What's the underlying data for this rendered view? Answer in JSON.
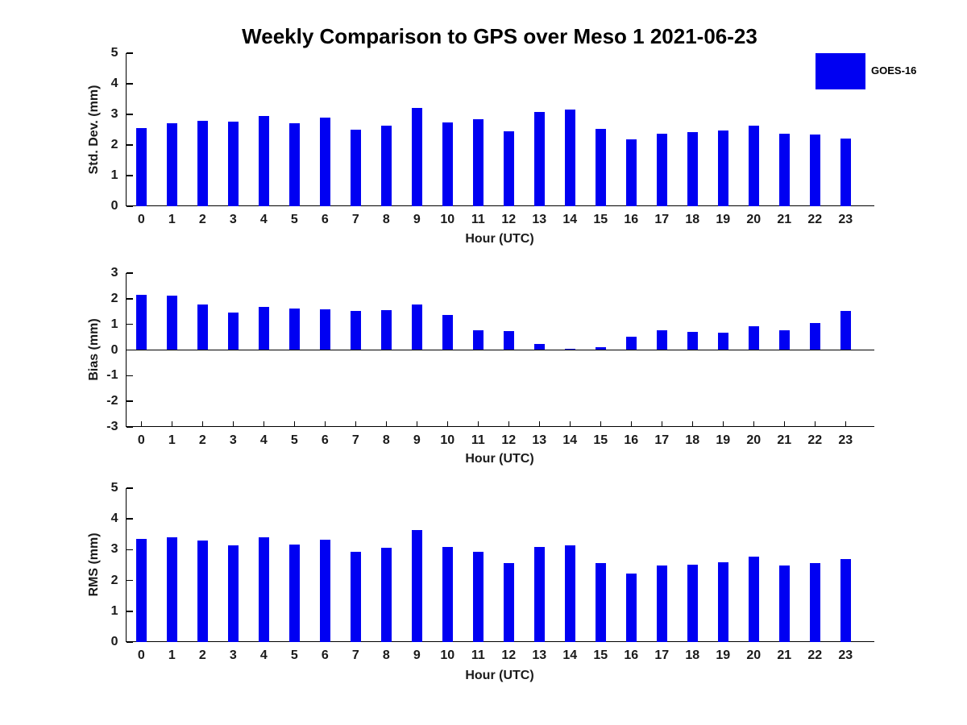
{
  "title": "Weekly Comparison to GPS over Meso 1 2021-06-23",
  "legend": {
    "label": "GOES-16",
    "swatch_color": "#0000F2"
  },
  "colors": {
    "bar": "#0000F2",
    "axis": "#000000",
    "tick_text": "#1a1a1a",
    "background": "#ffffff"
  },
  "chart_data": [
    {
      "type": "bar",
      "title": "Weekly Comparison to GPS over Meso 1 2021-06-23",
      "ylabel": "Std. Dev. (mm)",
      "xlabel": "Hour (UTC)",
      "categories": [
        "0",
        "1",
        "2",
        "3",
        "4",
        "5",
        "6",
        "7",
        "8",
        "9",
        "10",
        "11",
        "12",
        "13",
        "14",
        "15",
        "16",
        "17",
        "18",
        "19",
        "20",
        "21",
        "22",
        "23"
      ],
      "series": [
        {
          "name": "GOES-16",
          "values": [
            2.55,
            2.7,
            2.8,
            2.77,
            2.95,
            2.72,
            2.9,
            2.5,
            2.62,
            3.2,
            2.73,
            2.83,
            2.45,
            3.09,
            3.15,
            2.53,
            2.18,
            2.36,
            2.41,
            2.48,
            2.62,
            2.37,
            2.33,
            2.2
          ]
        }
      ],
      "ylim": [
        0,
        5
      ],
      "yticks": [
        0,
        1,
        2,
        3,
        4,
        5
      ],
      "grid": false,
      "legend_position": "outside-top-right"
    },
    {
      "type": "bar",
      "title": "",
      "ylabel": "Bias (mm)",
      "xlabel": "Hour (UTC)",
      "categories": [
        "0",
        "1",
        "2",
        "3",
        "4",
        "5",
        "6",
        "7",
        "8",
        "9",
        "10",
        "11",
        "12",
        "13",
        "14",
        "15",
        "16",
        "17",
        "18",
        "19",
        "20",
        "21",
        "22",
        "23"
      ],
      "series": [
        {
          "name": "GOES-16",
          "values": [
            2.15,
            2.12,
            1.77,
            1.45,
            1.68,
            1.62,
            1.58,
            1.52,
            1.55,
            1.78,
            1.36,
            0.76,
            0.74,
            0.24,
            0.06,
            0.11,
            0.53,
            0.78,
            0.7,
            0.69,
            0.92,
            0.77,
            1.04,
            1.53
          ]
        }
      ],
      "ylim": [
        -3,
        3
      ],
      "yticks": [
        -3,
        -2,
        -1,
        0,
        1,
        2,
        3
      ],
      "grid": false,
      "legend_position": "none"
    },
    {
      "type": "bar",
      "title": "",
      "ylabel": "RMS (mm)",
      "xlabel": "Hour (UTC)",
      "categories": [
        "0",
        "1",
        "2",
        "3",
        "4",
        "5",
        "6",
        "7",
        "8",
        "9",
        "10",
        "11",
        "12",
        "13",
        "14",
        "15",
        "16",
        "17",
        "18",
        "19",
        "20",
        "21",
        "22",
        "23"
      ],
      "series": [
        {
          "name": "GOES-16",
          "values": [
            3.35,
            3.4,
            3.3,
            3.13,
            3.4,
            3.17,
            3.32,
            2.93,
            3.07,
            3.65,
            3.08,
            2.93,
            2.56,
            3.08,
            3.15,
            2.57,
            2.22,
            2.48,
            2.52,
            2.6,
            2.77,
            2.48,
            2.56,
            2.7
          ]
        }
      ],
      "ylim": [
        0,
        5
      ],
      "yticks": [
        0,
        1,
        2,
        3,
        4,
        5
      ],
      "grid": false,
      "legend_position": "none"
    }
  ]
}
